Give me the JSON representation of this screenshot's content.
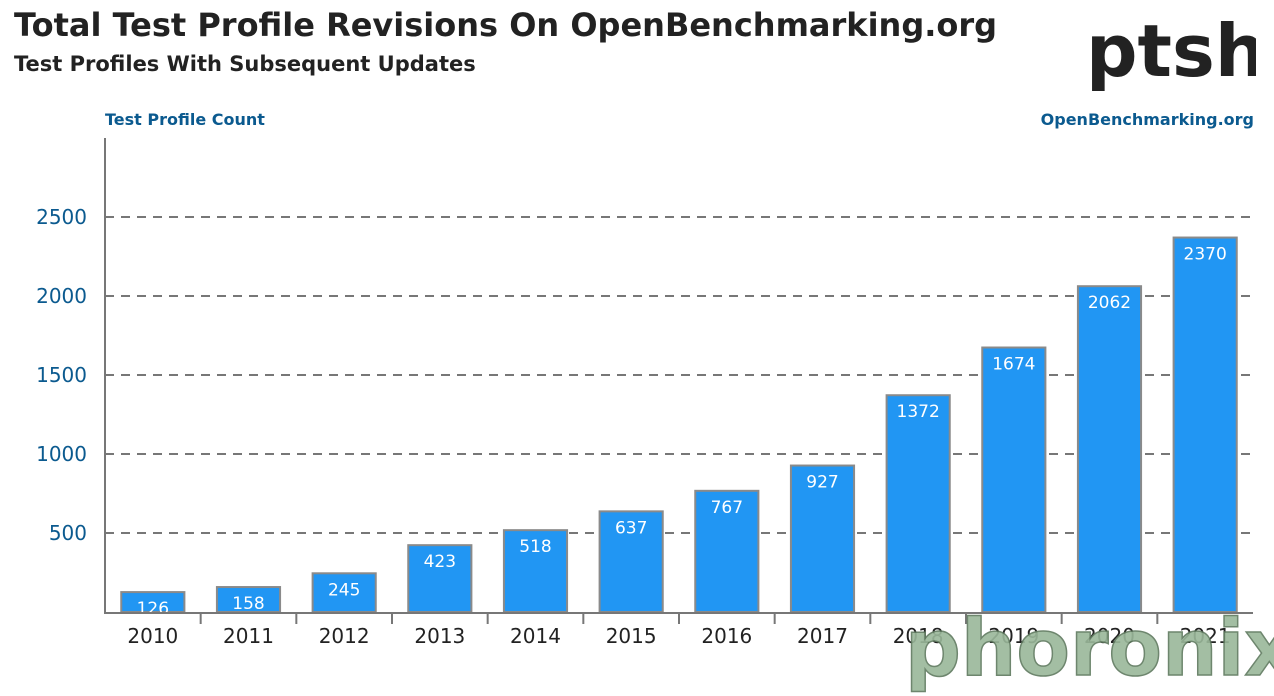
{
  "header": {
    "title": "Total Test Profile Revisions On OpenBenchmarking.org",
    "subtitle": "Test Profiles With Subsequent Updates",
    "source": "OpenBenchmarking.org",
    "logo_text": "ptsh",
    "watermark_text": "phoronix"
  },
  "colors": {
    "bar": "#2196f3",
    "bar_border": "#8a8a8a",
    "grid": "#777777",
    "axis": "#777777"
  },
  "chart_data": {
    "type": "bar",
    "title": "Total Test Profile Revisions On OpenBenchmarking.org",
    "subtitle": "Test Profiles With Subsequent Updates",
    "ylabel": "Test Profile Count",
    "xlabel": "",
    "categories": [
      "2010",
      "2011",
      "2012",
      "2013",
      "2014",
      "2015",
      "2016",
      "2017",
      "2018",
      "2019",
      "2020",
      "2021"
    ],
    "values": [
      126,
      158,
      245,
      423,
      518,
      637,
      767,
      927,
      1372,
      1674,
      2062,
      2370
    ],
    "ylim": [
      0,
      3000
    ],
    "yticks": [
      500,
      1000,
      1500,
      2000,
      2500
    ],
    "grid": true,
    "legend": "none"
  }
}
